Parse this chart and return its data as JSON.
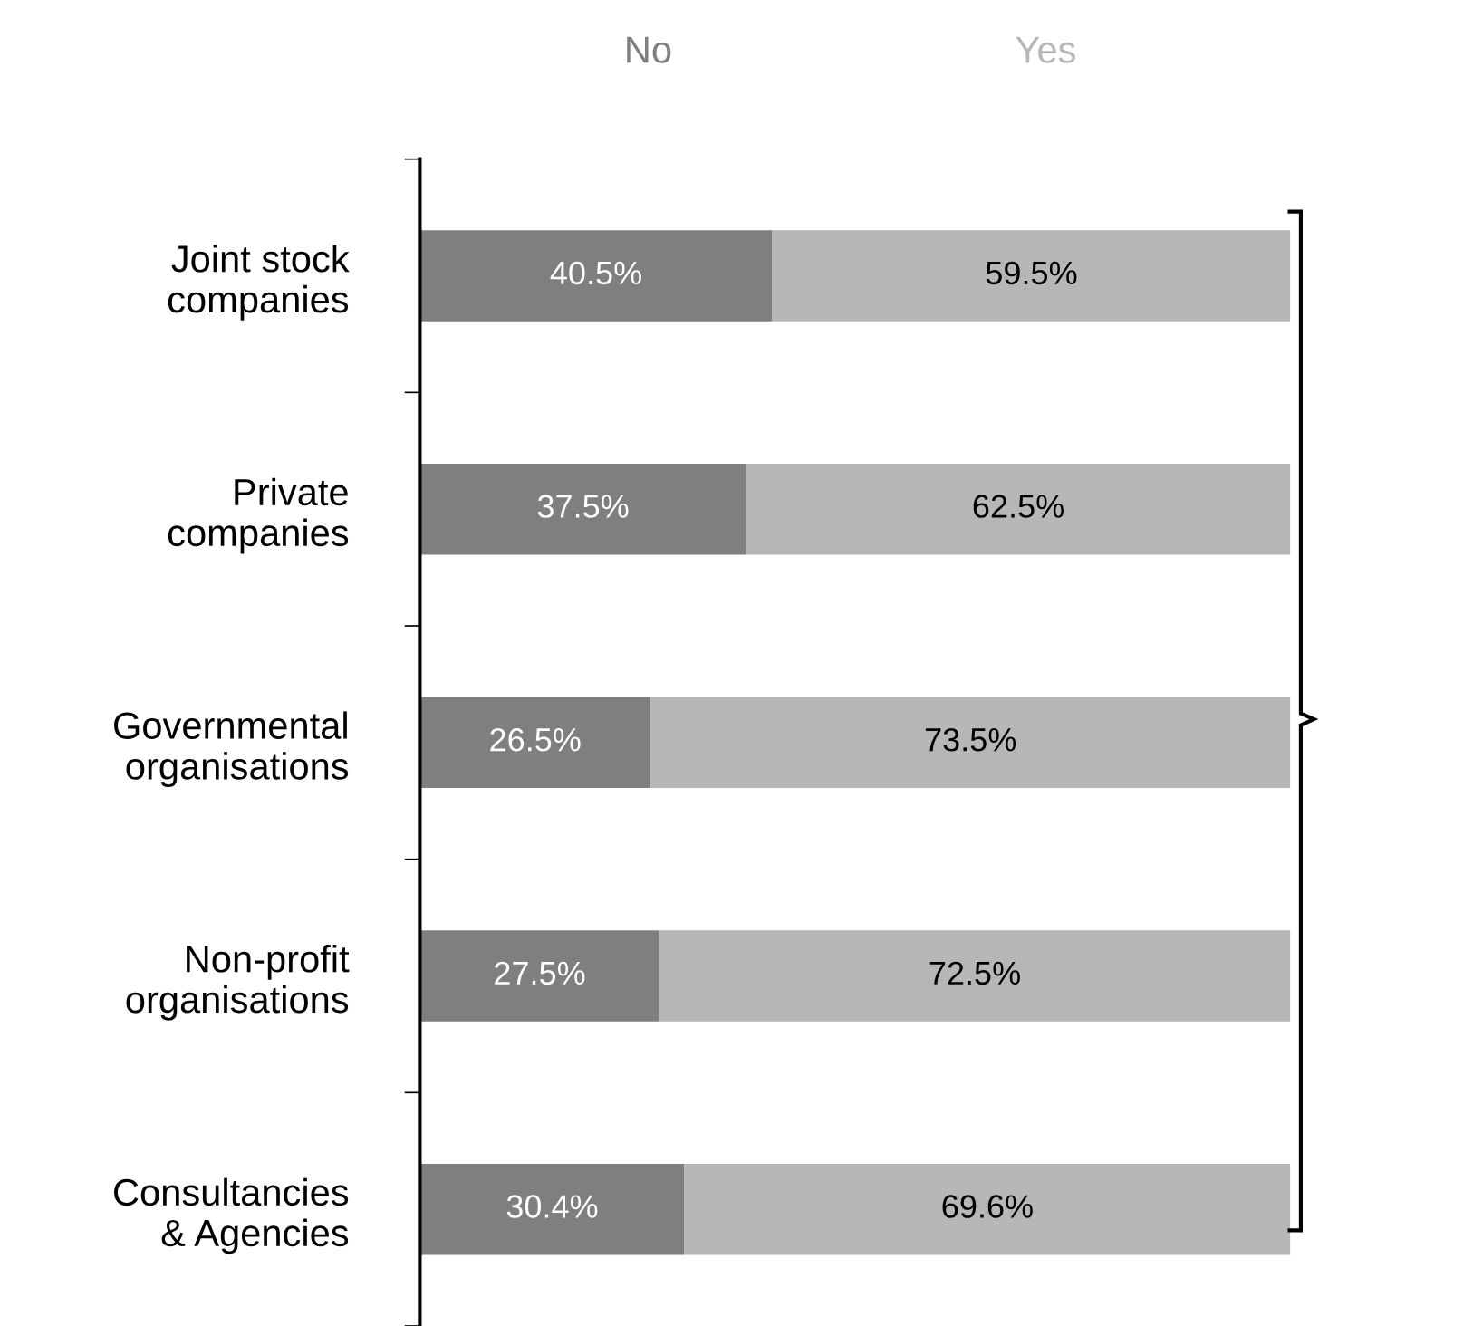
{
  "chart_data": {
    "type": "bar",
    "orientation": "horizontal",
    "stacked": true,
    "categories": [
      "Joint stock\ncompanies",
      "Private\ncompanies",
      "Governmental\norganisations",
      "Non-profit\norganisations",
      "Consultancies\n& Agencies"
    ],
    "series": [
      {
        "name": "No",
        "color": "#7f7f7f",
        "values": [
          40.5,
          37.5,
          26.5,
          27.5,
          30.4
        ],
        "value_labels": [
          "40.5%",
          "37.5%",
          "26.5%",
          "27.5%",
          "30.4%"
        ]
      },
      {
        "name": "Yes",
        "color": "#b7b7b7",
        "values": [
          59.5,
          62.5,
          73.5,
          72.5,
          69.6
        ],
        "value_labels": [
          "59.5%",
          "62.5%",
          "73.5%",
          "72.5%",
          "69.6%"
        ]
      }
    ],
    "xlim": [
      0,
      100
    ],
    "tick_labels": "y",
    "grid": false,
    "legend": "top"
  }
}
